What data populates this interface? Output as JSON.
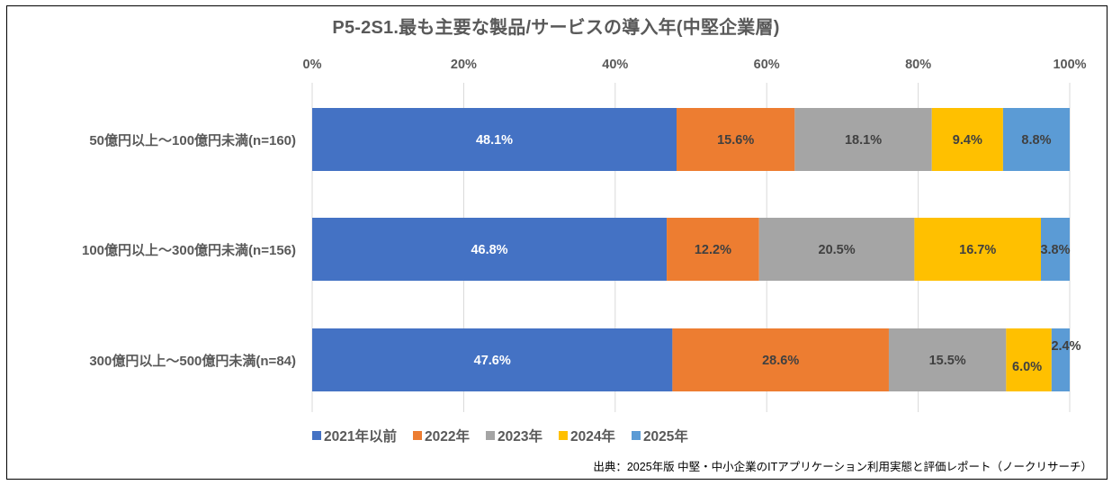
{
  "chart_data": {
    "type": "bar",
    "orientation": "horizontal",
    "stacked": "percent",
    "title": "P5-2S1.最も主要な製品/サービスの導入年(中堅企業層)",
    "xlabel": "",
    "ylabel": "",
    "xlim": [
      0,
      100
    ],
    "x_ticks": [
      "0%",
      "20%",
      "40%",
      "60%",
      "80%",
      "100%"
    ],
    "x_tick_values": [
      0,
      20,
      40,
      60,
      80,
      100
    ],
    "grid": true,
    "legend_position": "bottom-left",
    "categories": [
      "50億円以上～100億円未満(n=160)",
      "100億円以上～300億円未満(n=156)",
      "300億円以上～500億円未満(n=84)"
    ],
    "series": [
      {
        "name": "2021年以前",
        "color": "#4472C4",
        "label_color": "#ffffff",
        "values": [
          48.1,
          46.8,
          47.6
        ],
        "labels": [
          "48.1%",
          "46.8%",
          "47.6%"
        ]
      },
      {
        "name": "2022年",
        "color": "#ED7D31",
        "label_color": "#404040",
        "values": [
          15.6,
          12.2,
          28.6
        ],
        "labels": [
          "15.6%",
          "12.2%",
          "28.6%"
        ]
      },
      {
        "name": "2023年",
        "color": "#A5A5A5",
        "label_color": "#404040",
        "values": [
          18.1,
          20.5,
          15.5
        ],
        "labels": [
          "18.1%",
          "20.5%",
          "15.5%"
        ]
      },
      {
        "name": "2024年",
        "color": "#FFC000",
        "label_color": "#404040",
        "values": [
          9.4,
          16.7,
          6.0
        ],
        "labels": [
          "9.4%",
          "16.7%",
          "6.0%"
        ]
      },
      {
        "name": "2025年",
        "color": "#5B9BD5",
        "label_color": "#404040",
        "values": [
          8.8,
          3.8,
          2.4
        ],
        "labels": [
          "8.8%",
          "3.8%",
          "2.4%"
        ]
      }
    ],
    "source": "出典：2025年版 中堅・中小企業のITアプリケーション利用実態と評価レポート（ノークリサーチ）"
  }
}
